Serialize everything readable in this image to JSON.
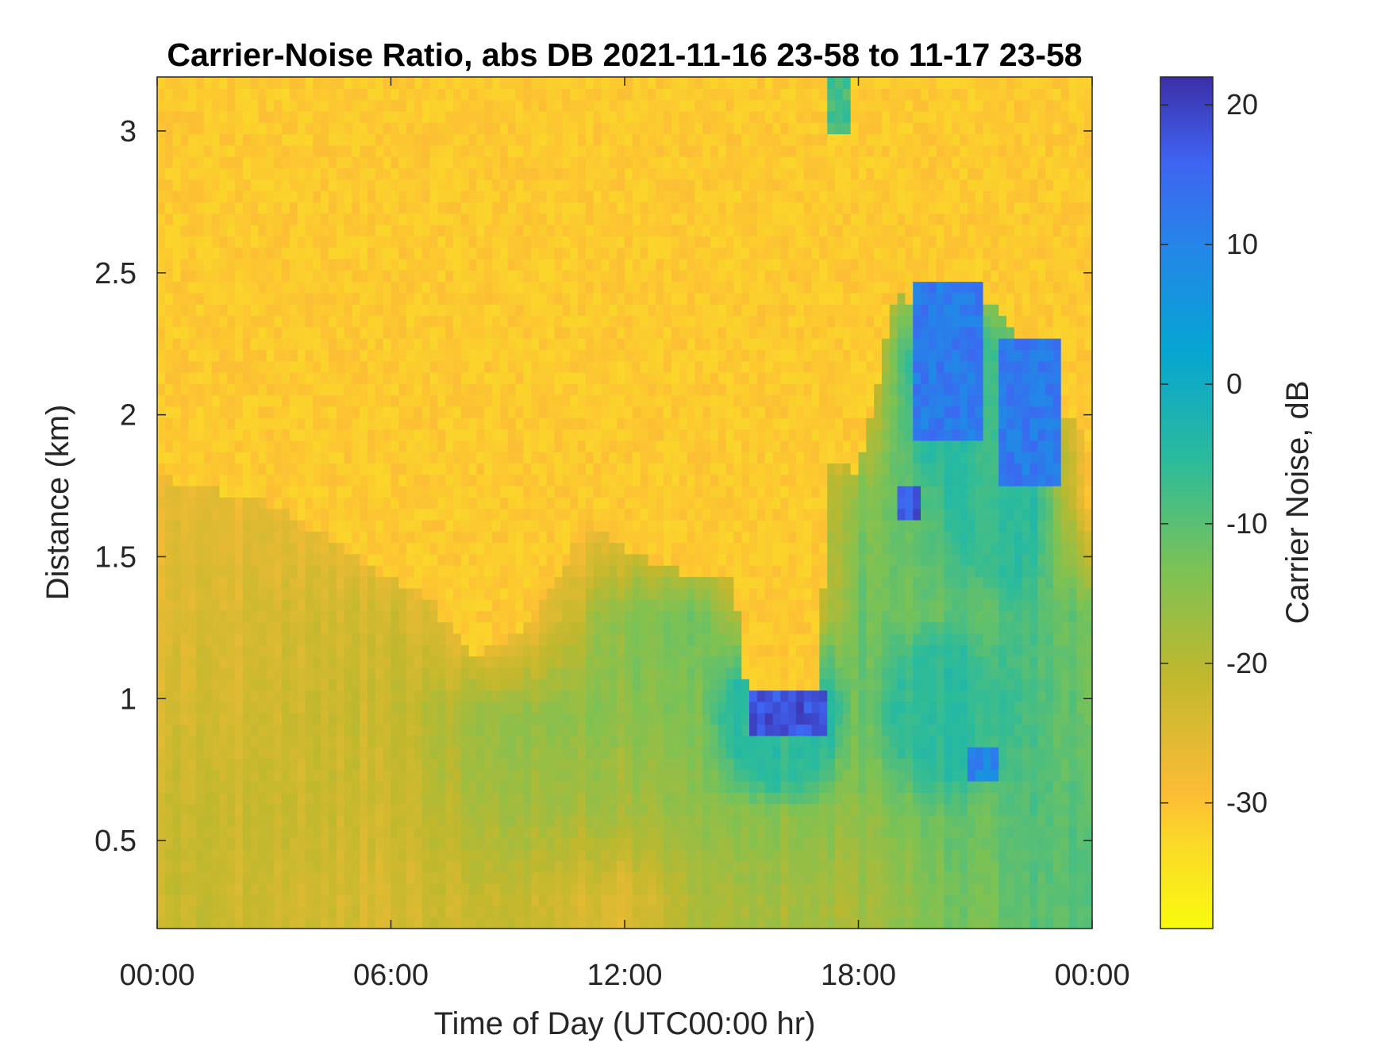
{
  "chart_data": {
    "type": "heatmap",
    "title": "Carrier-Noise Ratio, abs DB 2021-11-16 23-58 to 11-17 23-58",
    "xlabel": "Time of Day (UTC00:00 hr)",
    "ylabel": "Distance (km)",
    "colorbar_label": "Carrier Noise, dB",
    "colormap": "parula (reversed: yellow = low, dark blue = high)",
    "xlim_hours": [
      0,
      24
    ],
    "ylim_km": [
      0.19,
      3.19
    ],
    "clim_db": [
      -39,
      22
    ],
    "x_ticks": [
      {
        "value": 0,
        "label": "00:00"
      },
      {
        "value": 6,
        "label": "06:00"
      },
      {
        "value": 12,
        "label": "12:00"
      },
      {
        "value": 18,
        "label": "18:00"
      },
      {
        "value": 24,
        "label": "00:00"
      }
    ],
    "y_ticks": [
      {
        "value": 0.5,
        "label": "0.5"
      },
      {
        "value": 1,
        "label": "1"
      },
      {
        "value": 1.5,
        "label": "1.5"
      },
      {
        "value": 2,
        "label": "2"
      },
      {
        "value": 2.5,
        "label": "2.5"
      },
      {
        "value": 3,
        "label": "3"
      }
    ],
    "colorbar_ticks": [
      {
        "value": -30,
        "label": "-30"
      },
      {
        "value": -20,
        "label": "-20"
      },
      {
        "value": -10,
        "label": "-10"
      },
      {
        "value": 0,
        "label": "0"
      },
      {
        "value": 10,
        "label": "10"
      },
      {
        "value": 20,
        "label": "20"
      }
    ],
    "background_level_db": -31,
    "signal_top_km": {
      "hours": [
        0,
        1,
        2,
        3,
        4,
        5,
        6,
        7,
        8,
        9,
        10,
        11,
        12,
        13,
        14,
        14.8,
        15.2,
        17.0,
        17.2,
        18,
        19,
        20,
        21,
        22,
        23,
        24
      ],
      "values": [
        1.78,
        1.75,
        1.72,
        1.68,
        1.6,
        1.5,
        1.42,
        1.35,
        1.15,
        1.2,
        1.35,
        1.62,
        1.52,
        1.47,
        1.42,
        1.45,
        0.95,
        0.95,
        1.85,
        1.8,
        2.45,
        2.25,
        2.45,
        2.3,
        2.05,
        1.9
      ]
    },
    "columns": [
      {
        "hour": 0.5,
        "profile_db": [
          -22,
          -22,
          -24,
          -25,
          -26,
          -31,
          -31
        ]
      },
      {
        "hour": 3,
        "profile_db": [
          -23,
          -22,
          -23,
          -24,
          -26,
          -31,
          -31
        ]
      },
      {
        "hour": 6,
        "profile_db": [
          -24,
          -23,
          -22,
          -23,
          -31,
          -31,
          -31
        ]
      },
      {
        "hour": 9,
        "profile_db": [
          -21,
          -17,
          -15,
          -31,
          -31,
          -31,
          -31
        ]
      },
      {
        "hour": 12,
        "profile_db": [
          -25,
          -18,
          -15,
          -14,
          -31,
          -31,
          -31
        ]
      },
      {
        "hour": 14,
        "profile_db": [
          -19,
          -16,
          -14,
          -13,
          -31,
          -31,
          -31
        ]
      },
      {
        "hour": 16,
        "profile_db": [
          -18,
          -15,
          18,
          -31,
          -31,
          -31,
          -31
        ]
      },
      {
        "hour": 18,
        "profile_db": [
          -18,
          -15,
          -13,
          -12,
          -14,
          -31,
          -31
        ]
      },
      {
        "hour": 20,
        "profile_db": [
          -14,
          -12,
          5,
          -12,
          -9,
          8,
          -31
        ]
      },
      {
        "hour": 22,
        "profile_db": [
          -11,
          -10,
          -8,
          -9,
          5,
          -10,
          -31
        ]
      },
      {
        "hour": 24,
        "profile_db": [
          -9,
          -10,
          -12,
          -12,
          -31,
          -31,
          -31
        ]
      }
    ],
    "profile_heights_km": [
      0.3,
      0.6,
      0.95,
      1.3,
      1.7,
      2.2,
      2.8
    ],
    "features": [
      {
        "name": "echo band near 1 km",
        "x_hours": [
          15.2,
          17.1
        ],
        "y_km": [
          0.88,
          1.02
        ],
        "level_db": 18
      },
      {
        "name": "cloud top patch",
        "x_hours": [
          19.0,
          19.6
        ],
        "y_km": [
          1.62,
          1.75
        ],
        "level_db": 17
      },
      {
        "name": "cloud top patch",
        "x_hours": [
          19.5,
          21.2
        ],
        "y_km": [
          1.9,
          2.45
        ],
        "level_db": 12
      },
      {
        "name": "cloud top patch",
        "x_hours": [
          21.7,
          23.2
        ],
        "y_km": [
          1.75,
          2.25
        ],
        "level_db": 12
      },
      {
        "name": "low patch",
        "x_hours": [
          20.8,
          21.5
        ],
        "y_km": [
          0.72,
          0.82
        ],
        "level_db": 10
      },
      {
        "name": "high patch",
        "x_hours": [
          17.3,
          17.8
        ],
        "y_km": [
          3.0,
          3.19
        ],
        "level_db": -8
      }
    ]
  }
}
